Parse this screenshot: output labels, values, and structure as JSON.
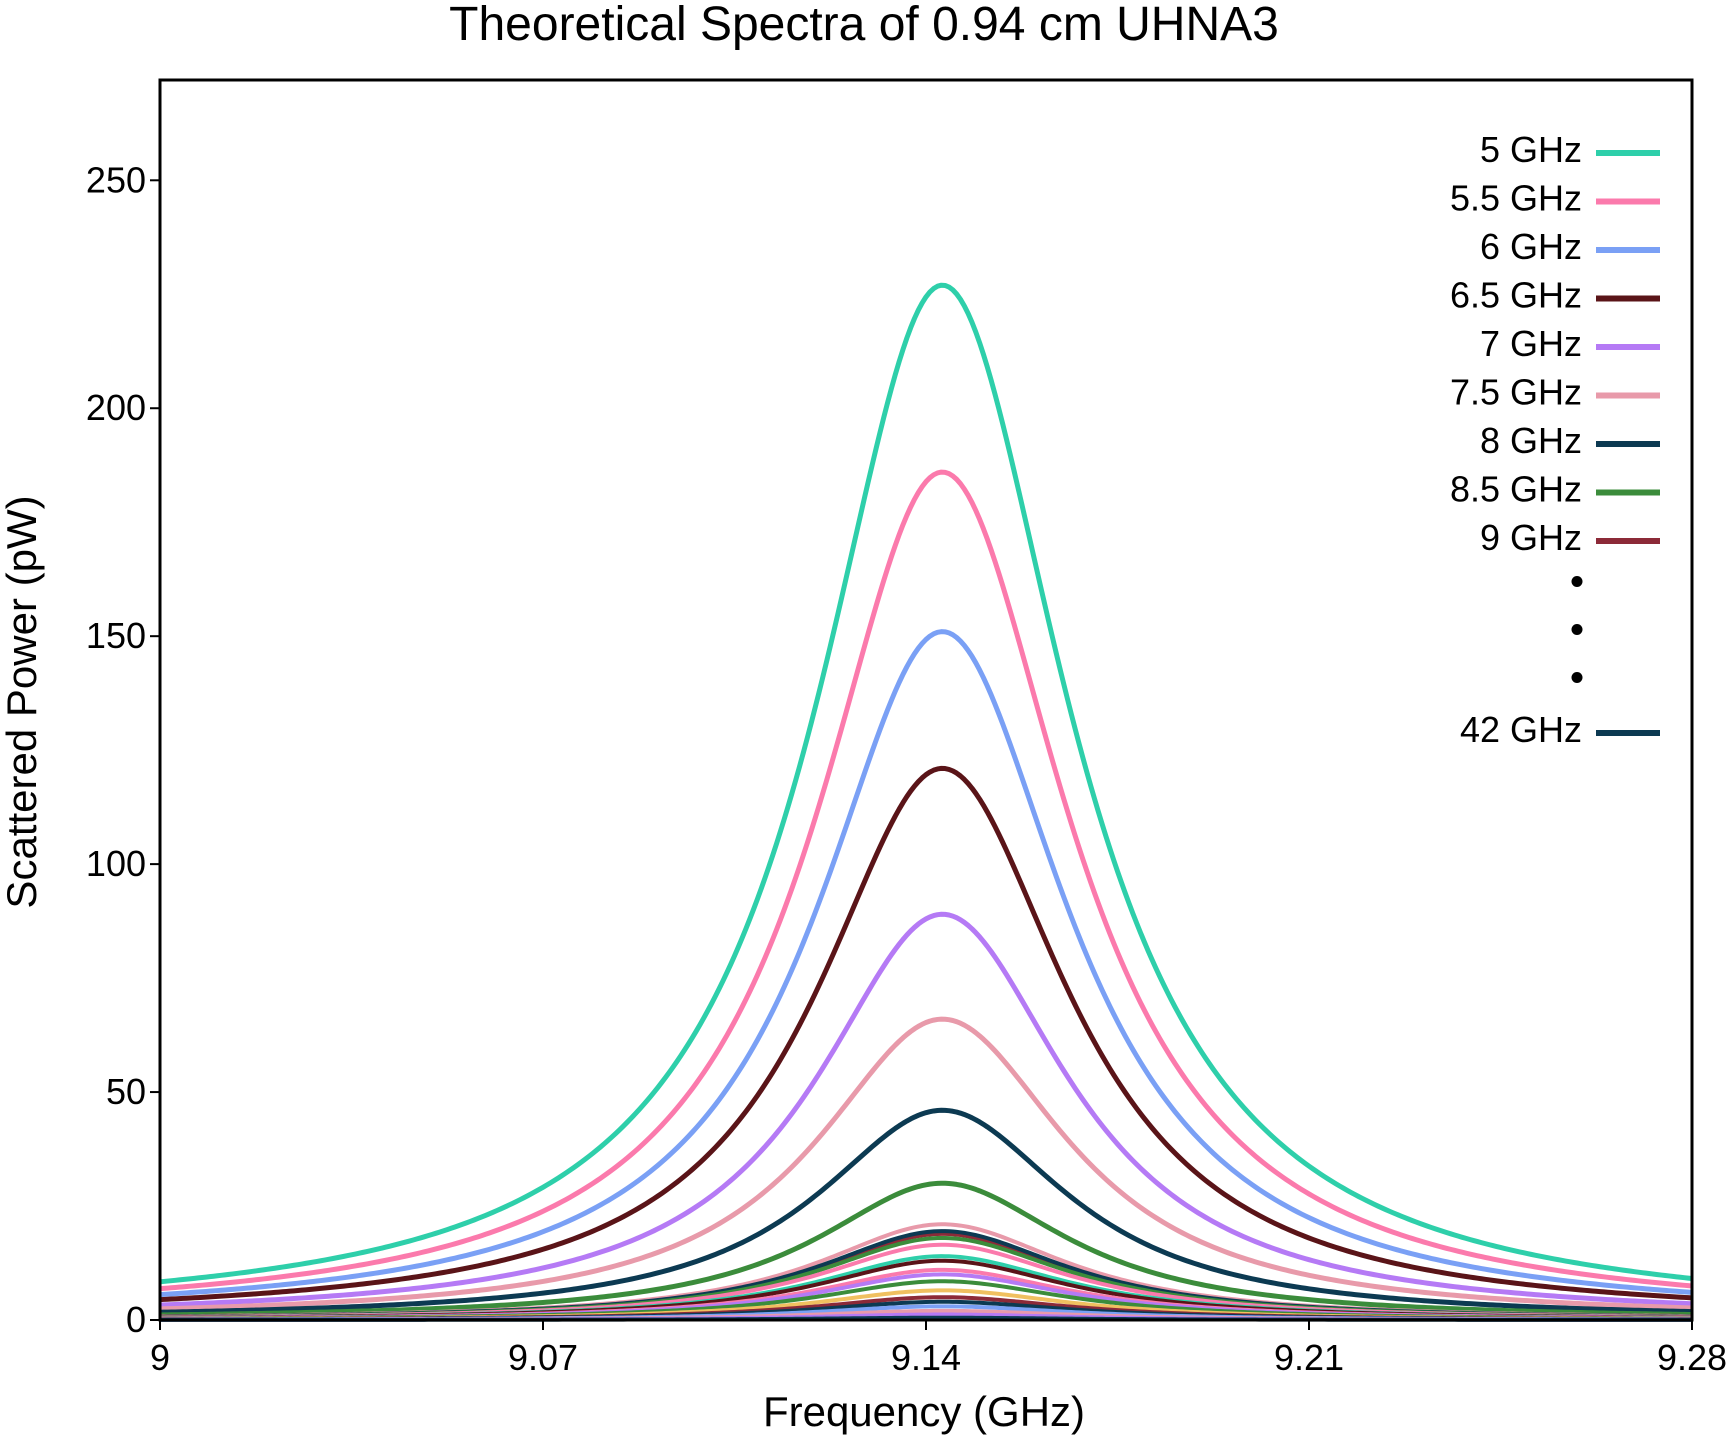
{
  "chart_data": {
    "type": "line",
    "title": "Theoretical Spectra of 0.94 cm UHNA3",
    "xlabel": "Frequency (GHz)",
    "ylabel": "Scattered Power (pW)",
    "xlim": [
      9,
      9.28
    ],
    "ylim": [
      0,
      272
    ],
    "x_ticks": [
      9,
      9.07,
      9.14,
      9.21,
      9.28
    ],
    "x_tick_labels": [
      "9",
      "9.07",
      "9.14",
      "9.21",
      "9.28"
    ],
    "y_ticks": [
      0,
      50,
      100,
      150,
      200,
      250
    ],
    "y_tick_labels": [
      "0",
      "50",
      "100",
      "150",
      "200",
      "250"
    ],
    "grid": false,
    "legend_position": "top-right",
    "peak_frequency": 9.143,
    "linewidth_fwhm": 0.056,
    "legend_ellipsis": "•",
    "series": [
      {
        "name": "5 GHz",
        "color": "#2ecfaa",
        "peak": 227
      },
      {
        "name": "5.5 GHz",
        "color": "#fb7aac",
        "peak": 186
      },
      {
        "name": "6 GHz",
        "color": "#7aa0f5",
        "peak": 151
      },
      {
        "name": "6.5 GHz",
        "color": "#5a1418",
        "peak": 121
      },
      {
        "name": "7 GHz",
        "color": "#b57af5",
        "peak": 89
      },
      {
        "name": "7.5 GHz",
        "color": "#e89aaa",
        "peak": 66
      },
      {
        "name": "8 GHz",
        "color": "#0c3a52",
        "peak": 46
      },
      {
        "name": "8.5 GHz",
        "color": "#3b8c3b",
        "peak": 30
      },
      {
        "name": "9 GHz",
        "color": "#8c2a38",
        "peak": 19
      },
      {
        "color": "#e89aaa",
        "peak": 21
      },
      {
        "color": "#0c3a52",
        "peak": 19.5
      },
      {
        "color": "#3b8c3b",
        "peak": 18
      },
      {
        "color": "#fb7aac",
        "peak": 16.5
      },
      {
        "color": "#2ecfaa",
        "peak": 14
      },
      {
        "color": "#5a1418",
        "peak": 13
      },
      {
        "color": "#fb7aac",
        "peak": 11
      },
      {
        "color": "#b57af5",
        "peak": 10
      },
      {
        "color": "#3b8c3b",
        "peak": 8.5
      },
      {
        "color": "#f0c060",
        "peak": 6.5
      },
      {
        "color": "#8c2a38",
        "peak": 5
      },
      {
        "color": "#0c3a52",
        "peak": 4
      },
      {
        "color": "#7aa0f5",
        "peak": 3
      },
      {
        "color": "#e89aaa",
        "peak": 2
      },
      {
        "color": "#b57af5",
        "peak": 1.2
      },
      {
        "name": "42 GHz",
        "color": "#0c3a52",
        "peak": 0.5
      }
    ],
    "legend_entries": [
      {
        "label": "5 GHz",
        "color": "#2ecfaa"
      },
      {
        "label": "5.5 GHz",
        "color": "#fb7aac"
      },
      {
        "label": "6 GHz",
        "color": "#7aa0f5"
      },
      {
        "label": "6.5 GHz",
        "color": "#5a1418"
      },
      {
        "label": "7 GHz",
        "color": "#b57af5"
      },
      {
        "label": "7.5 GHz",
        "color": "#e89aaa"
      },
      {
        "label": "8 GHz",
        "color": "#0c3a52"
      },
      {
        "label": "8.5 GHz",
        "color": "#3b8c3b"
      },
      {
        "label": "9 GHz",
        "color": "#8c2a38"
      },
      {
        "label": "42 GHz",
        "color": "#0c3a52"
      }
    ]
  }
}
